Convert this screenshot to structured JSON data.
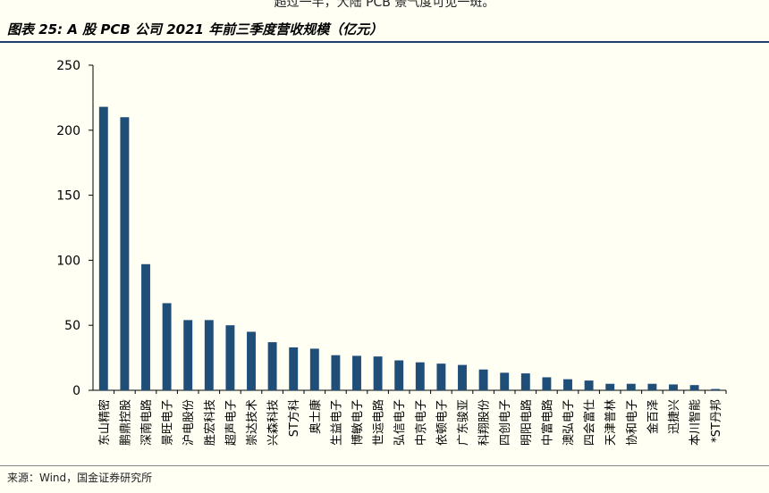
{
  "header": {
    "top_text": "超过一半，大陆 PCB 景气度可见一斑。",
    "figure_title": "图表 25:  A 股 PCB 公司 2021 年前三季度营收规模（亿元）"
  },
  "footer": {
    "source": "来源：Wind，国金证券研究所"
  },
  "colors": {
    "bar": "#1f4e79",
    "axis": "#000000",
    "background": "#fffff4"
  },
  "chart_data": {
    "type": "bar",
    "title": "A 股 PCB 公司 2021 年前三季度营收规模（亿元）",
    "xlabel": "",
    "ylabel": "",
    "ylim": [
      0,
      250
    ],
    "yticks": [
      0,
      50,
      100,
      150,
      200,
      250
    ],
    "grid": false,
    "categories": [
      "东山精密",
      "鹏鼎控股",
      "深南电路",
      "景旺电子",
      "沪电股份",
      "胜宏科技",
      "超声电子",
      "崇达技术",
      "兴森科技",
      "ST方科",
      "奥士康",
      "生益电子",
      "博敏电子",
      "世运电路",
      "弘信电子",
      "中京电子",
      "依顿电子",
      "广东骏亚",
      "科翔股份",
      "四创电子",
      "明阳电路",
      "中富电路",
      "澳弘电子",
      "四会富仕",
      "天津普林",
      "协和电子",
      "金百泽",
      "迅捷兴",
      "本川智能",
      "*ST丹邦"
    ],
    "values": [
      218,
      210,
      97,
      67,
      54,
      54,
      50,
      45,
      37,
      33,
      32,
      27,
      26.5,
      26,
      23,
      21.5,
      20.5,
      19.5,
      16,
      13.5,
      13,
      10,
      8.5,
      7.5,
      5,
      5,
      5,
      4.5,
      4,
      1
    ]
  }
}
